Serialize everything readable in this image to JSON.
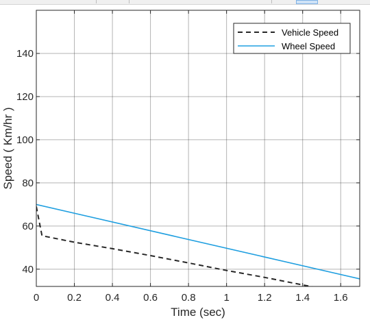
{
  "chart_data": {
    "type": "line",
    "title": "",
    "xlabel": "Time (sec)",
    "ylabel": "Speed ( Km/hr )",
    "xlim": [
      0,
      1.7
    ],
    "ylim": [
      32,
      160
    ],
    "xticks": [
      0,
      0.2,
      0.4,
      0.6,
      0.8,
      1,
      1.2,
      1.4,
      1.6
    ],
    "xtick_labels": [
      "0",
      "0.2",
      "0.4",
      "0.6",
      "0.8",
      "1",
      "1.2",
      "1.4",
      "1.6"
    ],
    "yticks": [
      40,
      60,
      80,
      100,
      120,
      140
    ],
    "ytick_labels": [
      "40",
      "60",
      "80",
      "100",
      "120",
      "140"
    ],
    "grid": true,
    "legend_position": "top-right",
    "series": [
      {
        "name": "Vehicle Speed",
        "style": "dashed",
        "color": "#262626",
        "x": [
          0,
          0.03,
          0.2,
          0.4,
          0.6,
          0.8,
          1.0,
          1.2,
          1.4,
          1.5
        ],
        "y": [
          69,
          55.5,
          52.5,
          49.5,
          46.3,
          42.9,
          39.4,
          36.2,
          32.7,
          31.0
        ]
      },
      {
        "name": "Wheel Speed",
        "style": "solid",
        "color": "#1f9fe0",
        "x": [
          0,
          1.7
        ],
        "y": [
          70,
          35.5
        ]
      }
    ]
  }
}
